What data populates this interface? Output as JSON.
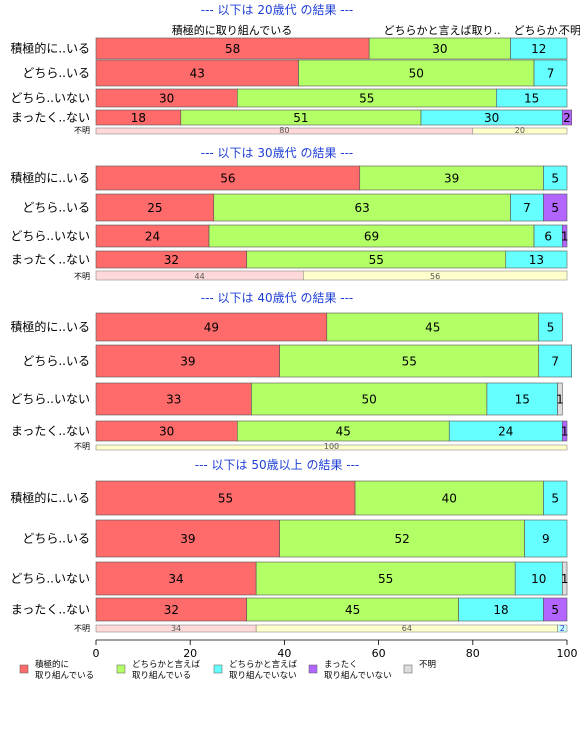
{
  "chart_data": {
    "type": "bar",
    "orientation": "horizontal",
    "stacked": true,
    "xlim": [
      0,
      100
    ],
    "x_ticks": [
      0,
      20,
      40,
      60,
      80,
      100
    ],
    "series": [
      {
        "name": "積極的に\n取り組んでいる",
        "color": "#ff6b6b"
      },
      {
        "name": "どちらかと言えば\n取り組んでいる",
        "color": "#b3ff66"
      },
      {
        "name": "どちらかと言えば\n取り組んでいない",
        "color": "#66ffff"
      },
      {
        "name": "まったく\n取り組んでいない",
        "color": "#b266ff"
      },
      {
        "name": "不明",
        "color": "#dddddd"
      }
    ],
    "panels": [
      {
        "title": "--- 以下は 20歳代 の結果 ---",
        "header_labels": [
          "積極的に取り組んでいる",
          "どちらかと言えば取り..",
          "どちらか..",
          "不明"
        ],
        "rows": [
          {
            "label": "積極的に..いる",
            "values": [
              58,
              30,
              12,
              0,
              0
            ]
          },
          {
            "label": "どちら..いる",
            "values": [
              43,
              50,
              7,
              0,
              0
            ]
          },
          {
            "label": "どちら..いない",
            "values": [
              30,
              55,
              15,
              0,
              0
            ]
          },
          {
            "label": "まったく..ない",
            "values": [
              18,
              51,
              30,
              2,
              0
            ]
          }
        ],
        "unknown": {
          "label": "不明",
          "values": [
            80,
            20
          ]
        }
      },
      {
        "title": "--- 以下は 30歳代 の結果 ---",
        "rows": [
          {
            "label": "積極的に..いる",
            "values": [
              56,
              39,
              5,
              0,
              0
            ]
          },
          {
            "label": "どちら..いる",
            "values": [
              25,
              63,
              7,
              5,
              0
            ]
          },
          {
            "label": "どちら..いない",
            "values": [
              24,
              69,
              6,
              1,
              0
            ]
          },
          {
            "label": "まったく..ない",
            "values": [
              32,
              55,
              13,
              0,
              0
            ]
          }
        ],
        "unknown": {
          "label": "不明",
          "values": [
            44,
            56
          ]
        }
      },
      {
        "title": "--- 以下は 40歳代 の結果 ---",
        "rows": [
          {
            "label": "積極的に..いる",
            "values": [
              49,
              45,
              5,
              0,
              0
            ]
          },
          {
            "label": "どちら..いる",
            "values": [
              39,
              55,
              7,
              0,
              0
            ]
          },
          {
            "label": "どちら..いない",
            "values": [
              33,
              50,
              15,
              0,
              1
            ]
          },
          {
            "label": "まったく..ない",
            "values": [
              30,
              45,
              24,
              1,
              0
            ]
          }
        ],
        "unknown": {
          "label": "不明",
          "values": [
            0,
            100
          ]
        }
      },
      {
        "title": "--- 以下は 50歳以上 の結果 ---",
        "rows": [
          {
            "label": "積極的に..いる",
            "values": [
              55,
              40,
              5,
              0,
              0
            ]
          },
          {
            "label": "どちら..いる",
            "values": [
              39,
              52,
              9,
              0,
              0
            ]
          },
          {
            "label": "どちら..いない",
            "values": [
              34,
              55,
              10,
              0,
              1
            ]
          },
          {
            "label": "まったく..ない",
            "values": [
              32,
              45,
              18,
              5,
              0
            ]
          }
        ],
        "unknown": {
          "label": "不明",
          "values": [
            34,
            64,
            2
          ]
        }
      }
    ]
  }
}
